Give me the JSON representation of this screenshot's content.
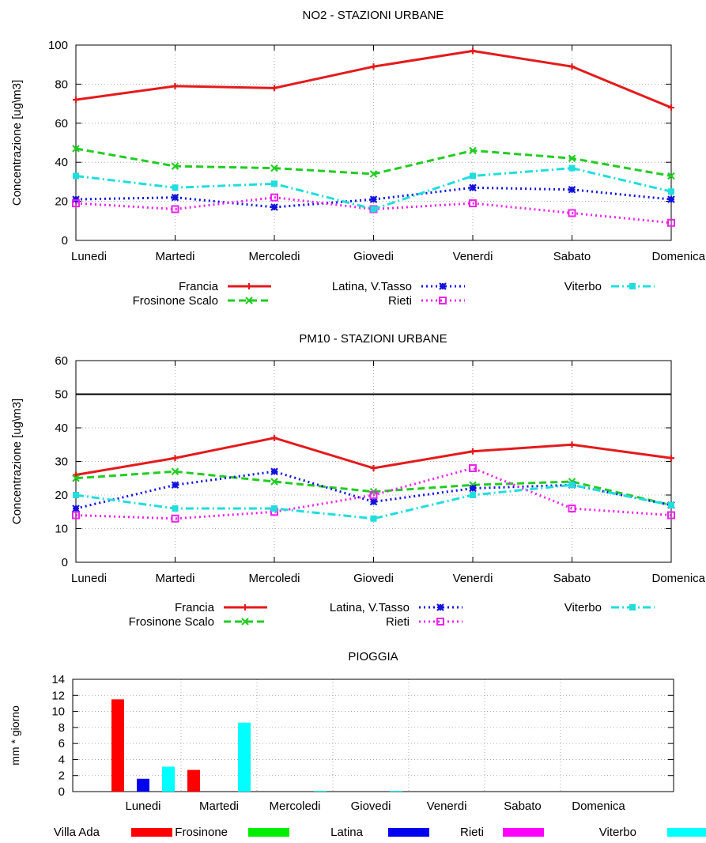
{
  "chart_data": [
    {
      "type": "line",
      "title": "NO2 - STAZIONI URBANE",
      "xlabel": "",
      "ylabel": "Concentrazione [ug\\m3]",
      "categories": [
        "Lunedi",
        "Martedi",
        "Mercoledi",
        "Giovedi",
        "Venerdi",
        "Sabato",
        "Domenica"
      ],
      "ylim": [
        0,
        100
      ],
      "yticks": [
        "0",
        "20",
        "40",
        "60",
        "80",
        "100"
      ],
      "grid": true,
      "legend_position": "bottom",
      "series": [
        {
          "name": "Francia",
          "color": "#e41a1c",
          "dash": "solid",
          "marker": "plus",
          "values": [
            72,
            79,
            78,
            89,
            97,
            89,
            68
          ]
        },
        {
          "name": "Frosinone Scalo",
          "color": "#22cc22",
          "dash": "dashed",
          "marker": "x",
          "values": [
            47,
            38,
            37,
            34,
            46,
            42,
            33
          ]
        },
        {
          "name": "Latina, V.Tasso",
          "color": "#1111dd",
          "dash": "dotted",
          "marker": "star",
          "values": [
            21,
            22,
            17,
            21,
            27,
            26,
            21
          ]
        },
        {
          "name": "Rieti",
          "color": "#ee22ee",
          "dash": "dotted",
          "marker": "square-open",
          "values": [
            19,
            16,
            22,
            16,
            19,
            14,
            9
          ]
        },
        {
          "name": "Viterbo",
          "color": "#22dddd",
          "dash": "dashdot",
          "marker": "square",
          "values": [
            33,
            27,
            29,
            16,
            33,
            37,
            25
          ]
        }
      ]
    },
    {
      "type": "line",
      "title": "PM10 - STAZIONI URBANE",
      "xlabel": "",
      "ylabel": "Concentrazione [ug\\m3]",
      "categories": [
        "Lunedi",
        "Martedi",
        "Mercoledi",
        "Giovedi",
        "Venerdi",
        "Sabato",
        "Domenica"
      ],
      "ylim": [
        0,
        60
      ],
      "yticks": [
        "0",
        "10",
        "20",
        "30",
        "40",
        "50",
        "60"
      ],
      "grid": true,
      "reference_line": 50,
      "legend_position": "bottom",
      "series": [
        {
          "name": "Francia",
          "color": "#e41a1c",
          "dash": "solid",
          "marker": "plus",
          "values": [
            26,
            31,
            37,
            28,
            33,
            35,
            31
          ]
        },
        {
          "name": "Frosinone Scalo",
          "color": "#22cc22",
          "dash": "dashed",
          "marker": "x",
          "values": [
            25,
            27,
            24,
            21,
            23,
            24,
            17
          ]
        },
        {
          "name": "Latina, V.Tasso",
          "color": "#1111dd",
          "dash": "dotted",
          "marker": "star",
          "values": [
            16,
            23,
            27,
            18,
            22,
            23,
            17
          ]
        },
        {
          "name": "Rieti",
          "color": "#ee22ee",
          "dash": "dotted",
          "marker": "square-open",
          "values": [
            14,
            13,
            15,
            20,
            28,
            16,
            14
          ]
        },
        {
          "name": "Viterbo",
          "color": "#22dddd",
          "dash": "dashdot",
          "marker": "square",
          "values": [
            20,
            16,
            16,
            13,
            20,
            23,
            17
          ]
        }
      ]
    },
    {
      "type": "bar",
      "title": "PIOGGIA",
      "xlabel": "",
      "ylabel": "mm * giorno",
      "categories": [
        "Lunedi",
        "Martedi",
        "Mercoledi",
        "Giovedi",
        "Venerdi",
        "Sabato",
        "Domenica"
      ],
      "ylim": [
        0,
        14
      ],
      "yticks": [
        "0",
        "2",
        "4",
        "6",
        "8",
        "10",
        "12",
        "14"
      ],
      "grid": true,
      "legend_position": "bottom",
      "series": [
        {
          "name": "Villa Ada",
          "color": "#ff0000",
          "values": [
            11.5,
            2.7,
            0,
            0,
            0,
            0,
            0
          ]
        },
        {
          "name": "Frosinone",
          "color": "#00ee00",
          "values": [
            0,
            0,
            0,
            0,
            0,
            0,
            0
          ]
        },
        {
          "name": "Latina",
          "color": "#0000ee",
          "values": [
            1.6,
            0,
            0,
            0,
            0,
            0,
            0
          ]
        },
        {
          "name": "Rieti",
          "color": "#ff00ff",
          "values": [
            0,
            0,
            0,
            0,
            0,
            0,
            0
          ]
        },
        {
          "name": "Viterbo",
          "color": "#00ffff",
          "values": [
            3.1,
            8.6,
            0.1,
            0.1,
            0,
            0,
            0
          ]
        }
      ]
    }
  ]
}
